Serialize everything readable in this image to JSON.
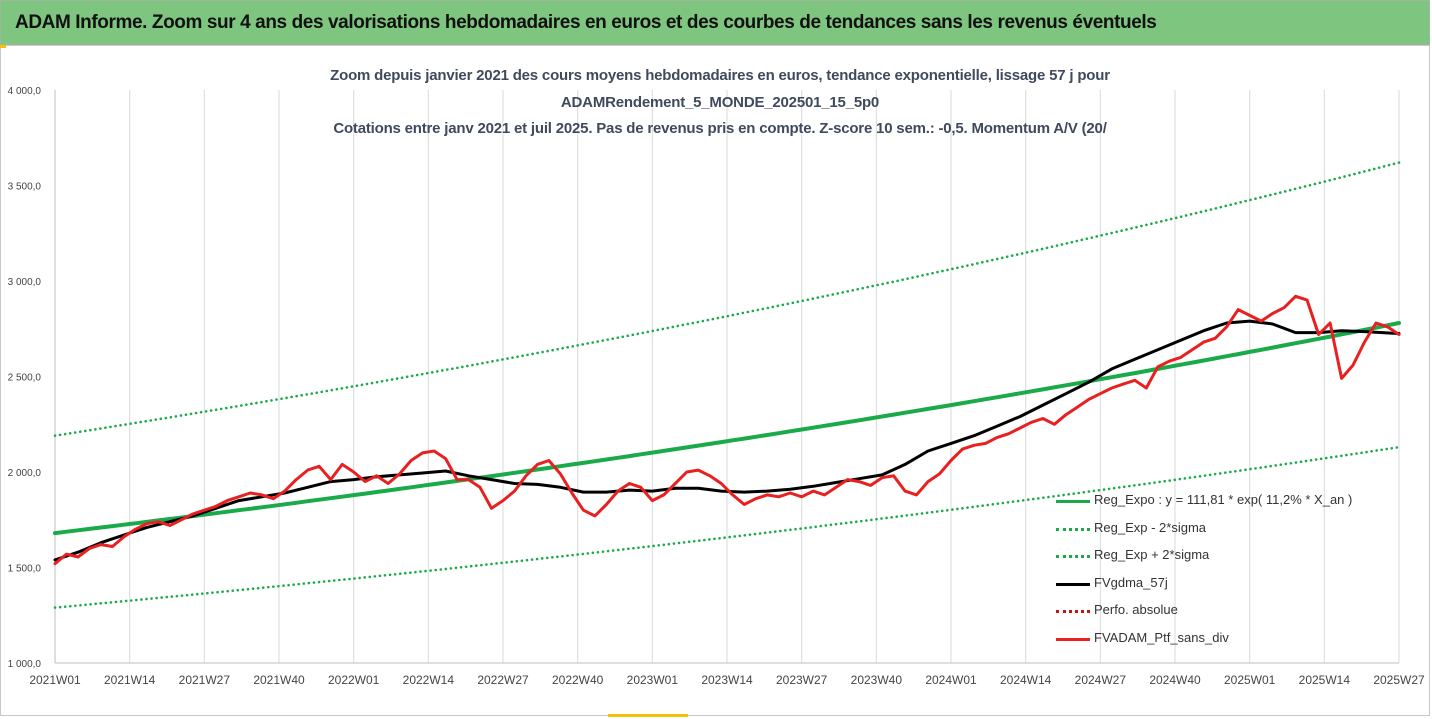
{
  "banner": {
    "title": "ADAM Informe. Zoom sur 4 ans des valorisations hebdomadaires en euros et des courbes de tendances sans les revenus éventuels"
  },
  "chart_title_lines": [
    "Zoom depuis janvier 2021 des cours moyens hebdomadaires  en euros, tendance exponentielle, lissage 57 j pour",
    "ADAMRendement_5_MONDE_202501_15_5p0",
    "Cotations entre janv 2021 et juil 2025. Pas de revenus pris en compte. Z-score 10 sem.: -0,5. Momentum A/V (20/"
  ],
  "chart_data": {
    "type": "line",
    "title": "Zoom depuis janvier 2021 des cours moyens hebdomadaires  en euros, tendance exponentielle, lissage 57 j pour ADAMRendement_5_MONDE_202501_15_5p0 Cotations entre janv 2021 et juil 2025. Pas de revenus pris en compte. Z-score 10 sem.: -0,5. Momentum A/V (20/",
    "xlabel": "",
    "ylabel": "",
    "x_ticks": [
      "2021W01",
      "2021W14",
      "2021W27",
      "2021W40",
      "2022W01",
      "2022W14",
      "2022W27",
      "2022W40",
      "2023W01",
      "2023W14",
      "2023W27",
      "2023W40",
      "2024W01",
      "2024W14",
      "2024W27",
      "2024W40",
      "2025W01",
      "2025W14",
      "2025W27"
    ],
    "x_range": [
      0,
      234
    ],
    "x_unit": "weeks from 2021W01",
    "ylim": [
      1000,
      4000
    ],
    "y_ticks": [
      1000,
      1500,
      2000,
      2500,
      3000,
      3500,
      4000
    ],
    "y_tick_labels": [
      "1 000,0",
      "1 500,0",
      "2 000,0",
      "2 500,0",
      "3 000,0",
      "3 500,0",
      "4 000,0"
    ],
    "grid": "vertical",
    "legend_position": "right",
    "series": [
      {
        "name": "Reg_Expo : y = 111,81 * exp( 11,2% *  X_an )",
        "color": "#1aaa4a",
        "style": "solid",
        "x": [
          0,
          234
        ],
        "y": [
          1680,
          2780
        ],
        "curve": "exponential"
      },
      {
        "name": "Reg_Exp - 2*sigma",
        "color": "#1aaa4a",
        "style": "dotted",
        "x": [
          0,
          234
        ],
        "y": [
          1290,
          2130
        ],
        "curve": "exponential"
      },
      {
        "name": "Reg_Exp + 2*sigma",
        "color": "#1aaa4a",
        "style": "dotted",
        "x": [
          0,
          234
        ],
        "y": [
          2190,
          3620
        ],
        "curve": "exponential"
      },
      {
        "name": "FVgdma_57j",
        "color": "#000000",
        "style": "solid",
        "x": [
          0,
          4,
          8,
          12,
          16,
          20,
          24,
          28,
          32,
          36,
          40,
          44,
          48,
          52,
          56,
          60,
          64,
          68,
          72,
          76,
          80,
          84,
          88,
          92,
          96,
          100,
          104,
          108,
          112,
          116,
          120,
          124,
          128,
          132,
          136,
          140,
          144,
          148,
          152,
          156,
          160,
          164,
          168,
          172,
          176,
          180,
          184,
          188,
          192,
          196,
          200,
          204,
          208,
          212,
          216,
          220,
          224,
          228,
          234
        ],
        "y": [
          1540,
          1580,
          1630,
          1670,
          1710,
          1740,
          1770,
          1810,
          1850,
          1870,
          1890,
          1920,
          1950,
          1960,
          1975,
          1985,
          1995,
          2005,
          1980,
          1960,
          1940,
          1935,
          1920,
          1895,
          1895,
          1905,
          1900,
          1915,
          1915,
          1900,
          1895,
          1900,
          1910,
          1925,
          1945,
          1965,
          1985,
          2040,
          2110,
          2150,
          2190,
          2240,
          2290,
          2350,
          2410,
          2470,
          2540,
          2590,
          2640,
          2690,
          2740,
          2780,
          2790,
          2775,
          2730,
          2730,
          2740,
          2735,
          2725
        ]
      },
      {
        "name": "Perfo. absolue",
        "color": "#cc1111",
        "style": "dotted",
        "x": [],
        "y": []
      },
      {
        "name": "FVADAM_Ptf_sans_div",
        "color": "#e82020",
        "style": "solid",
        "x": [
          0,
          2,
          4,
          6,
          8,
          10,
          12,
          14,
          16,
          18,
          20,
          22,
          24,
          26,
          28,
          30,
          32,
          34,
          36,
          38,
          40,
          42,
          44,
          46,
          48,
          50,
          52,
          54,
          56,
          58,
          60,
          62,
          64,
          66,
          68,
          70,
          72,
          74,
          76,
          78,
          80,
          82,
          84,
          86,
          88,
          90,
          92,
          94,
          96,
          98,
          100,
          102,
          104,
          106,
          108,
          110,
          112,
          114,
          116,
          118,
          120,
          122,
          124,
          126,
          128,
          130,
          132,
          134,
          136,
          138,
          140,
          142,
          144,
          146,
          148,
          150,
          152,
          154,
          156,
          158,
          160,
          162,
          164,
          166,
          168,
          170,
          172,
          174,
          176,
          178,
          180,
          182,
          184,
          186,
          188,
          190,
          192,
          194,
          196,
          198,
          200,
          202,
          204,
          206,
          208,
          210,
          212,
          214,
          216,
          218,
          220,
          222,
          224,
          226,
          228,
          230,
          232,
          234
        ],
        "y": [
          1520,
          1570,
          1555,
          1600,
          1620,
          1610,
          1660,
          1700,
          1730,
          1740,
          1720,
          1750,
          1780,
          1800,
          1820,
          1850,
          1870,
          1890,
          1880,
          1860,
          1900,
          1960,
          2010,
          2030,
          1960,
          2040,
          2000,
          1950,
          1980,
          1940,
          1990,
          2060,
          2100,
          2110,
          2070,
          1960,
          1960,
          1920,
          1810,
          1850,
          1900,
          1980,
          2040,
          2060,
          1990,
          1890,
          1800,
          1770,
          1830,
          1900,
          1940,
          1920,
          1850,
          1880,
          1940,
          2000,
          2010,
          1980,
          1940,
          1880,
          1830,
          1860,
          1880,
          1870,
          1890,
          1870,
          1900,
          1880,
          1920,
          1960,
          1950,
          1930,
          1970,
          1980,
          1900,
          1880,
          1950,
          1990,
          2060,
          2120,
          2140,
          2150,
          2180,
          2200,
          2230,
          2260,
          2280,
          2250,
          2300,
          2340,
          2380,
          2410,
          2440,
          2460,
          2480,
          2440,
          2550,
          2580,
          2600,
          2640,
          2680,
          2700,
          2760,
          2850,
          2820,
          2790,
          2830,
          2860,
          2920,
          2900,
          2720,
          2780,
          2490,
          2560,
          2680,
          2780,
          2760,
          2720
        ]
      }
    ]
  }
}
